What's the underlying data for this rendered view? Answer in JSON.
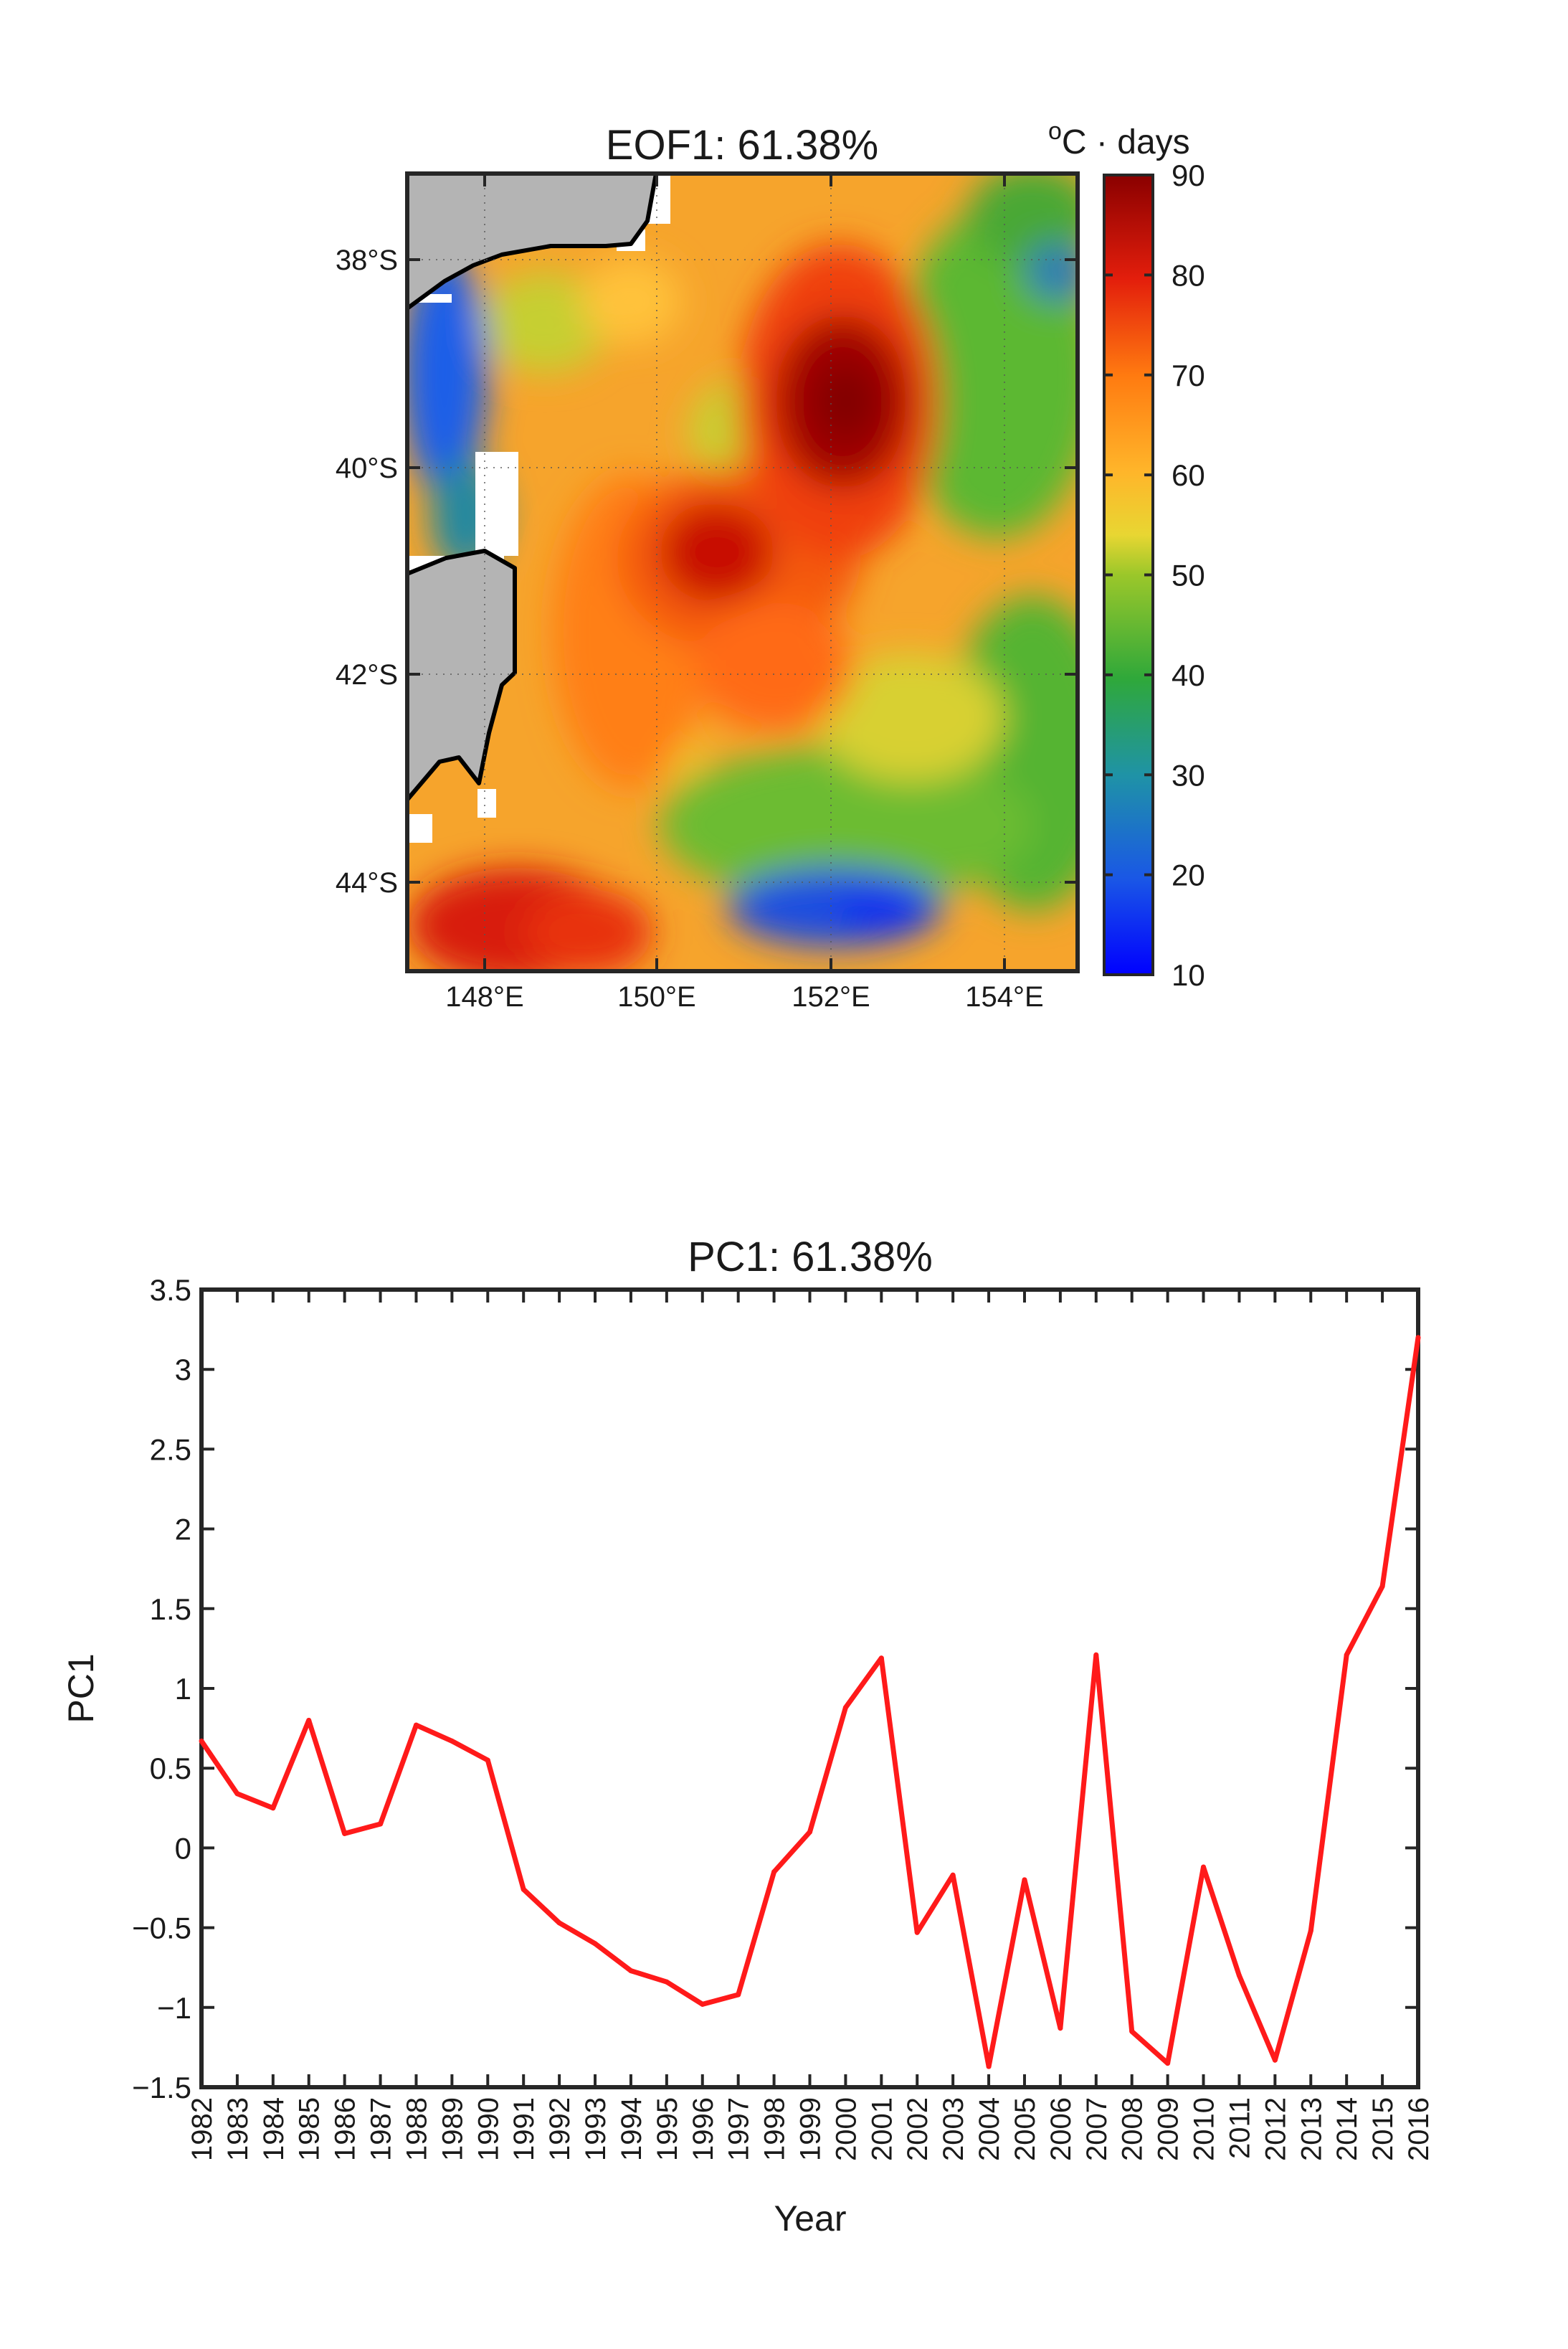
{
  "chart_data": [
    {
      "type": "heatmap",
      "title": "EOF1: 61.38%",
      "colorbar_label_sup": "o",
      "colorbar_label_rest": "C · days",
      "colorbar_ticks": [
        "90",
        "80",
        "70",
        "60",
        "50",
        "40",
        "30",
        "20",
        "10"
      ],
      "colorbar_range": [
        10,
        90
      ],
      "colormap": "jet",
      "x_ticks": [
        "148°E",
        "150°E",
        "152°E",
        "154°E"
      ],
      "y_ticks": [
        "38°S",
        "40°S",
        "42°S",
        "44°S"
      ],
      "lon_range": [
        147.1,
        154.8
      ],
      "lat_range": [
        -44.85,
        -37.15
      ],
      "grid": "dotted",
      "land_color": "#b4b4b4",
      "field_hotspots": [
        {
          "lon": 152.1,
          "lat": -39.4,
          "value": 90
        },
        {
          "lon": 150.8,
          "lat": -40.8,
          "value": 82
        },
        {
          "lon": 148.2,
          "lat": -44.5,
          "value": 80
        },
        {
          "lon": 152.3,
          "lat": -44.3,
          "value": 12
        },
        {
          "lon": 147.3,
          "lat": -38.8,
          "value": 12
        },
        {
          "lon": 154.4,
          "lat": -38.1,
          "value": 22
        }
      ]
    },
    {
      "type": "line",
      "title": "PC1: 61.38%",
      "xlabel": "Year",
      "ylabel": "PC1",
      "ylim": [
        -1.5,
        3.5
      ],
      "y_ticks": [
        "3.5",
        "3",
        "2.5",
        "2",
        "1.5",
        "1",
        "0.5",
        "0",
        "-0.5",
        "-1",
        "-1.5"
      ],
      "x": [
        "1982",
        "1983",
        "1984",
        "1985",
        "1986",
        "1987",
        "1988",
        "1989",
        "1990",
        "1991",
        "1992",
        "1993",
        "1994",
        "1995",
        "1996",
        "1997",
        "1998",
        "1999",
        "2000",
        "2001",
        "2002",
        "2003",
        "2004",
        "2005",
        "2006",
        "2007",
        "2008",
        "2009",
        "2010",
        "2011",
        "2012",
        "2013",
        "2014",
        "2015",
        "2016"
      ],
      "series": [
        {
          "color": "#ff1a1a",
          "values": [
            0.67,
            0.34,
            0.25,
            0.8,
            0.09,
            0.15,
            0.77,
            0.67,
            0.55,
            -0.26,
            -0.47,
            -0.6,
            -0.77,
            -0.84,
            -0.98,
            -0.92,
            -0.15,
            0.1,
            0.88,
            1.19,
            -0.53,
            -0.17,
            -1.37,
            -0.2,
            -1.13,
            1.21,
            -1.15,
            -1.35,
            -0.12,
            -0.8,
            -1.33,
            -0.52,
            1.21,
            1.64,
            3.2
          ]
        }
      ]
    }
  ]
}
